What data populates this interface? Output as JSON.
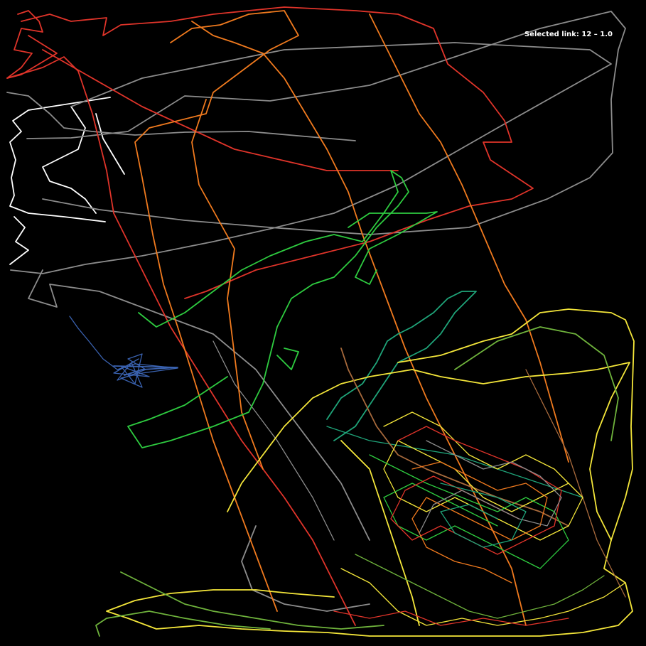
{
  "status": {
    "label": "Selected link:",
    "value": "12 – 1.0"
  },
  "colors": {
    "background": "#000000",
    "white": "#ffffff",
    "gray": "#8c8c8c",
    "red": "#e0342a",
    "orange": "#f07a1e",
    "yellow": "#f4e63a",
    "green": "#2ecc40",
    "olive": "#6fb33c",
    "teal": "#1fa57a",
    "brown": "#a86a3c",
    "blue": "#3a62b0"
  }
}
